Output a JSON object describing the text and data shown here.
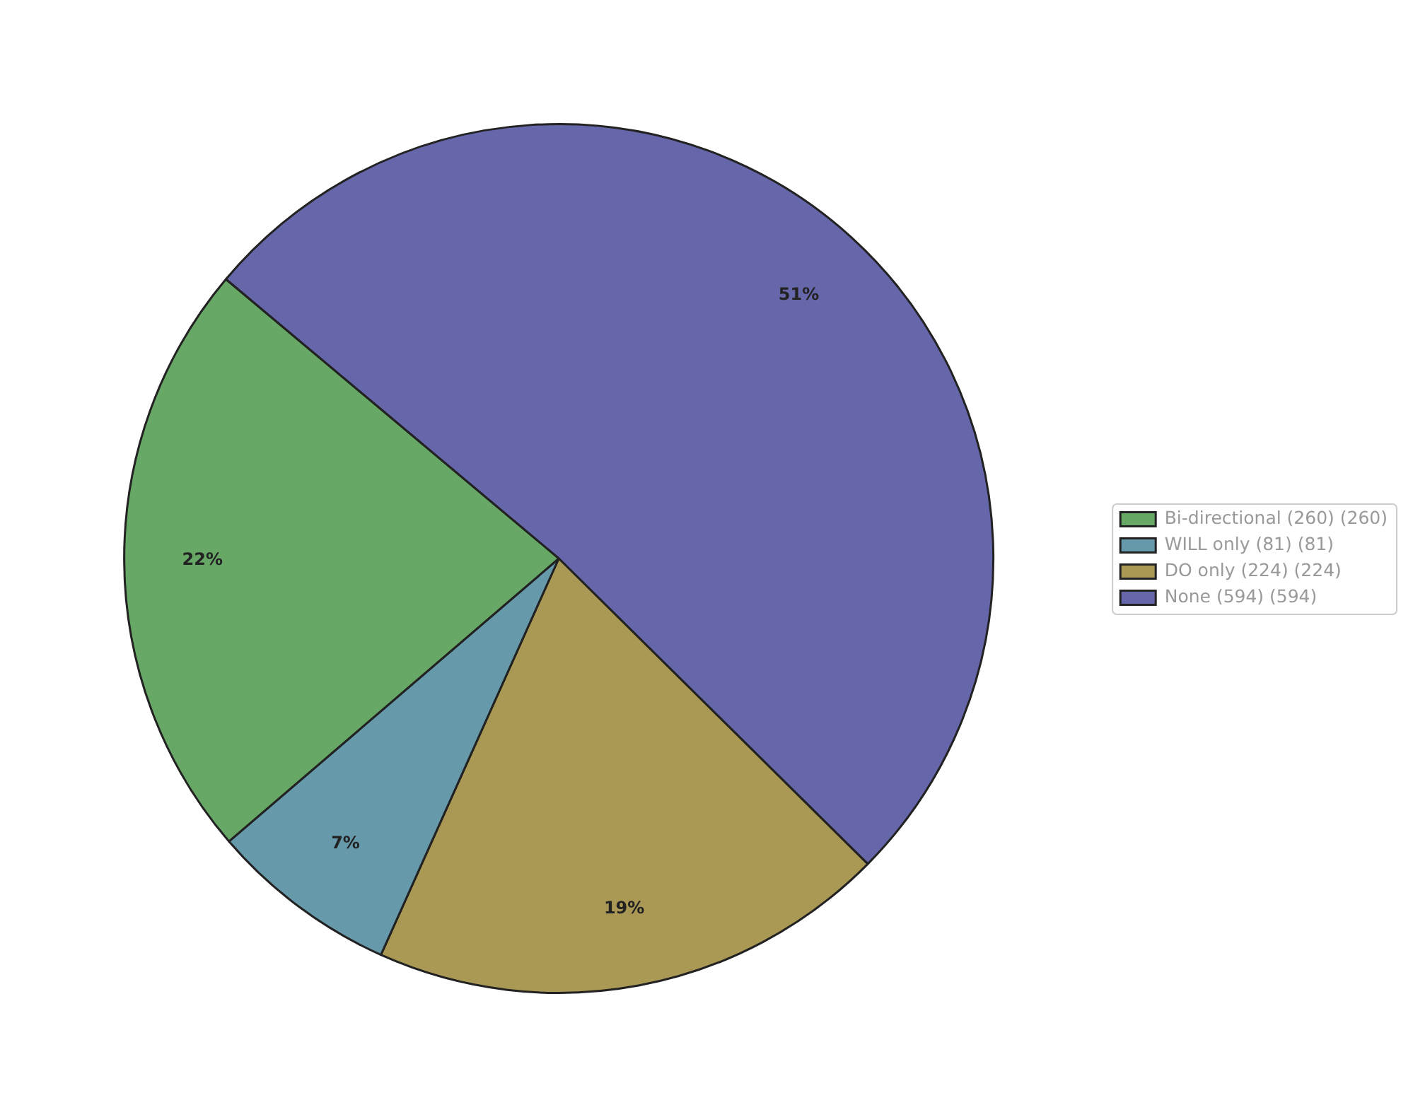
{
  "chart_data": {
    "type": "pie",
    "categories": [
      "Bi-directional (260) (260)",
      "WILL only (81) (81)",
      "DO only (224) (224)",
      "None (594) (594)"
    ],
    "values": [
      22.4,
      7.0,
      19.3,
      51.3
    ],
    "colors": [
      "#67a866",
      "#6699aa",
      "#aa9855",
      "#6666aa"
    ],
    "value_labels": [
      "22%",
      "7%",
      "19%",
      "51%"
    ],
    "legend": "right"
  }
}
